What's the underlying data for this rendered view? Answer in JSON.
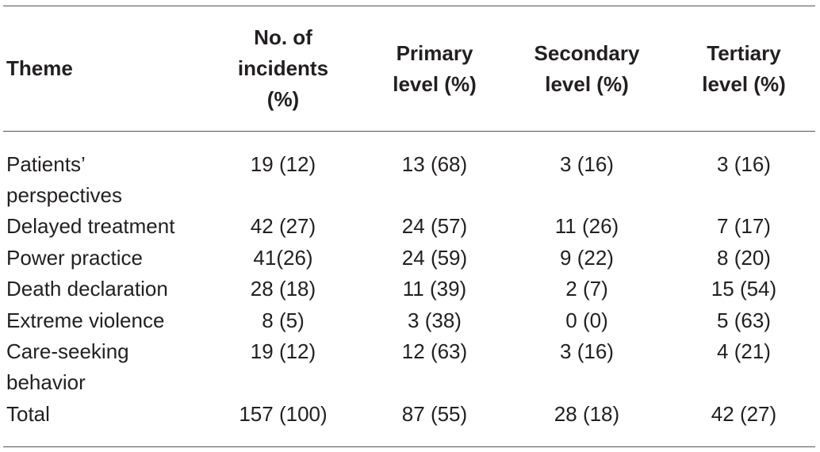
{
  "table": {
    "headers": {
      "theme": "Theme",
      "incidents": [
        "No. of",
        "incidents",
        "(%)"
      ],
      "primary": [
        "Primary",
        "level (%)"
      ],
      "secondary": [
        "Secondary",
        "level (%)"
      ],
      "tertiary": [
        "Tertiary",
        "level (%)"
      ]
    },
    "rows": [
      {
        "theme": [
          "Patients’",
          "perspectives"
        ],
        "incidents": "19 (12)",
        "primary": "13 (68)",
        "secondary": "3 (16)",
        "tertiary": "3 (16)"
      },
      {
        "theme": [
          "Delayed treatment"
        ],
        "incidents": "42 (27)",
        "primary": "24 (57)",
        "secondary": "11 (26)",
        "tertiary": "7 (17)"
      },
      {
        "theme": [
          "Power practice"
        ],
        "incidents": "41(26)",
        "primary": "24 (59)",
        "secondary": "9 (22)",
        "tertiary": "8 (20)"
      },
      {
        "theme": [
          "Death declaration"
        ],
        "incidents": "28 (18)",
        "primary": "11 (39)",
        "secondary": "2 (7)",
        "tertiary": "15 (54)"
      },
      {
        "theme": [
          "Extreme violence"
        ],
        "incidents": "8 (5)",
        "primary": "3 (38)",
        "secondary": "0 (0)",
        "tertiary": "5 (63)"
      },
      {
        "theme": [
          "Care-seeking",
          "behavior"
        ],
        "incidents": "19 (12)",
        "primary": "12 (63)",
        "secondary": "3 (16)",
        "tertiary": "4 (21)"
      },
      {
        "theme": [
          "Total"
        ],
        "incidents": "157 (100)",
        "primary": "87 (55)",
        "secondary": "28 (18)",
        "tertiary": "42 (27)"
      }
    ]
  }
}
